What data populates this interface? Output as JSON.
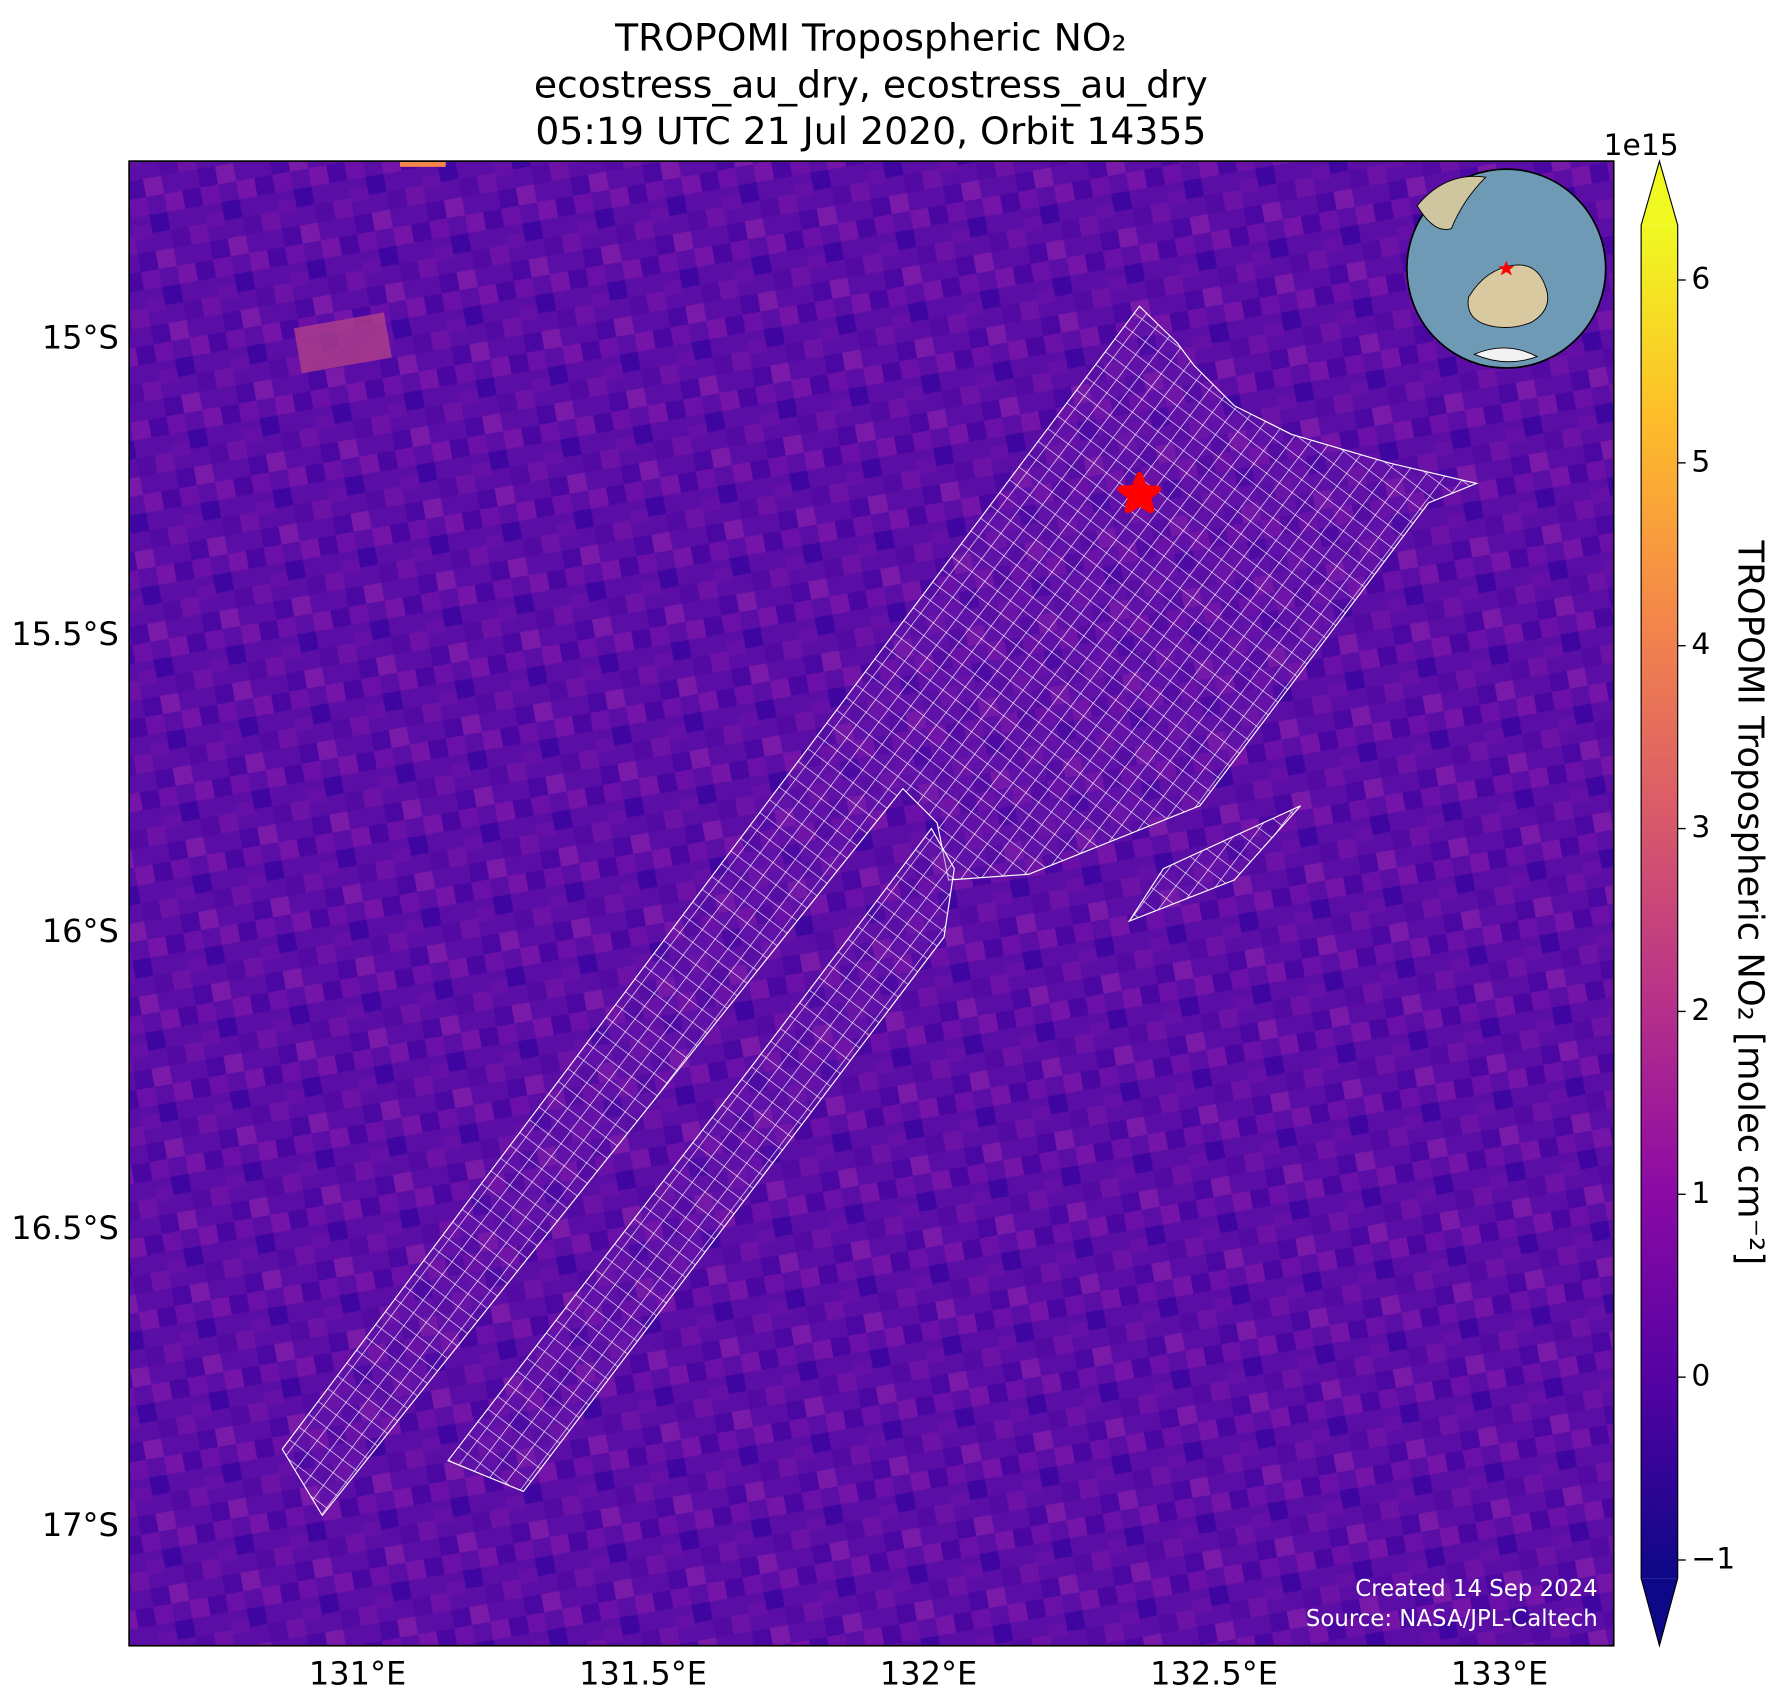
{
  "chart_data": {
    "type": "map",
    "title": [
      "TROPOMI Tropospheric NO₂",
      "ecostress_au_dry, ecostress_au_dry",
      "05:19 UTC 21 Jul 2020, Orbit 14355"
    ],
    "xlim": [
      130.6,
      133.2
    ],
    "ylim": [
      -14.7,
      -17.2
    ],
    "xticks": [
      {
        "value": 131,
        "label": "131°E"
      },
      {
        "value": 131.5,
        "label": "131.5°E"
      },
      {
        "value": 132,
        "label": "132°E"
      },
      {
        "value": 132.5,
        "label": "132.5°E"
      },
      {
        "value": 133,
        "label": "133°E"
      }
    ],
    "yticks": [
      {
        "value": -15,
        "label": "15°S"
      },
      {
        "value": -15.5,
        "label": "15.5°S"
      },
      {
        "value": -16,
        "label": "16°S"
      },
      {
        "value": -16.5,
        "label": "16.5°S"
      },
      {
        "value": -17,
        "label": "17°S"
      }
    ],
    "grid": true,
    "colorbar": {
      "label": "TROPOMI Tropospheric NO₂ [molec cm⁻²]",
      "offset_label": "1e15",
      "lim": [
        -1.1,
        6.3
      ],
      "ticks": [
        {
          "value": -1,
          "label": "−1"
        },
        0,
        1,
        2,
        3,
        4,
        5,
        6
      ],
      "colormap": [
        "#0d0887",
        "#5302a3",
        "#8b0aa5",
        "#b83289",
        "#db5c68",
        "#f48849",
        "#febd2a",
        "#f0f921"
      ]
    },
    "credit": [
      "Created 14 Sep 2024",
      "Source: NASA/JPL-Caltech"
    ]
  }
}
